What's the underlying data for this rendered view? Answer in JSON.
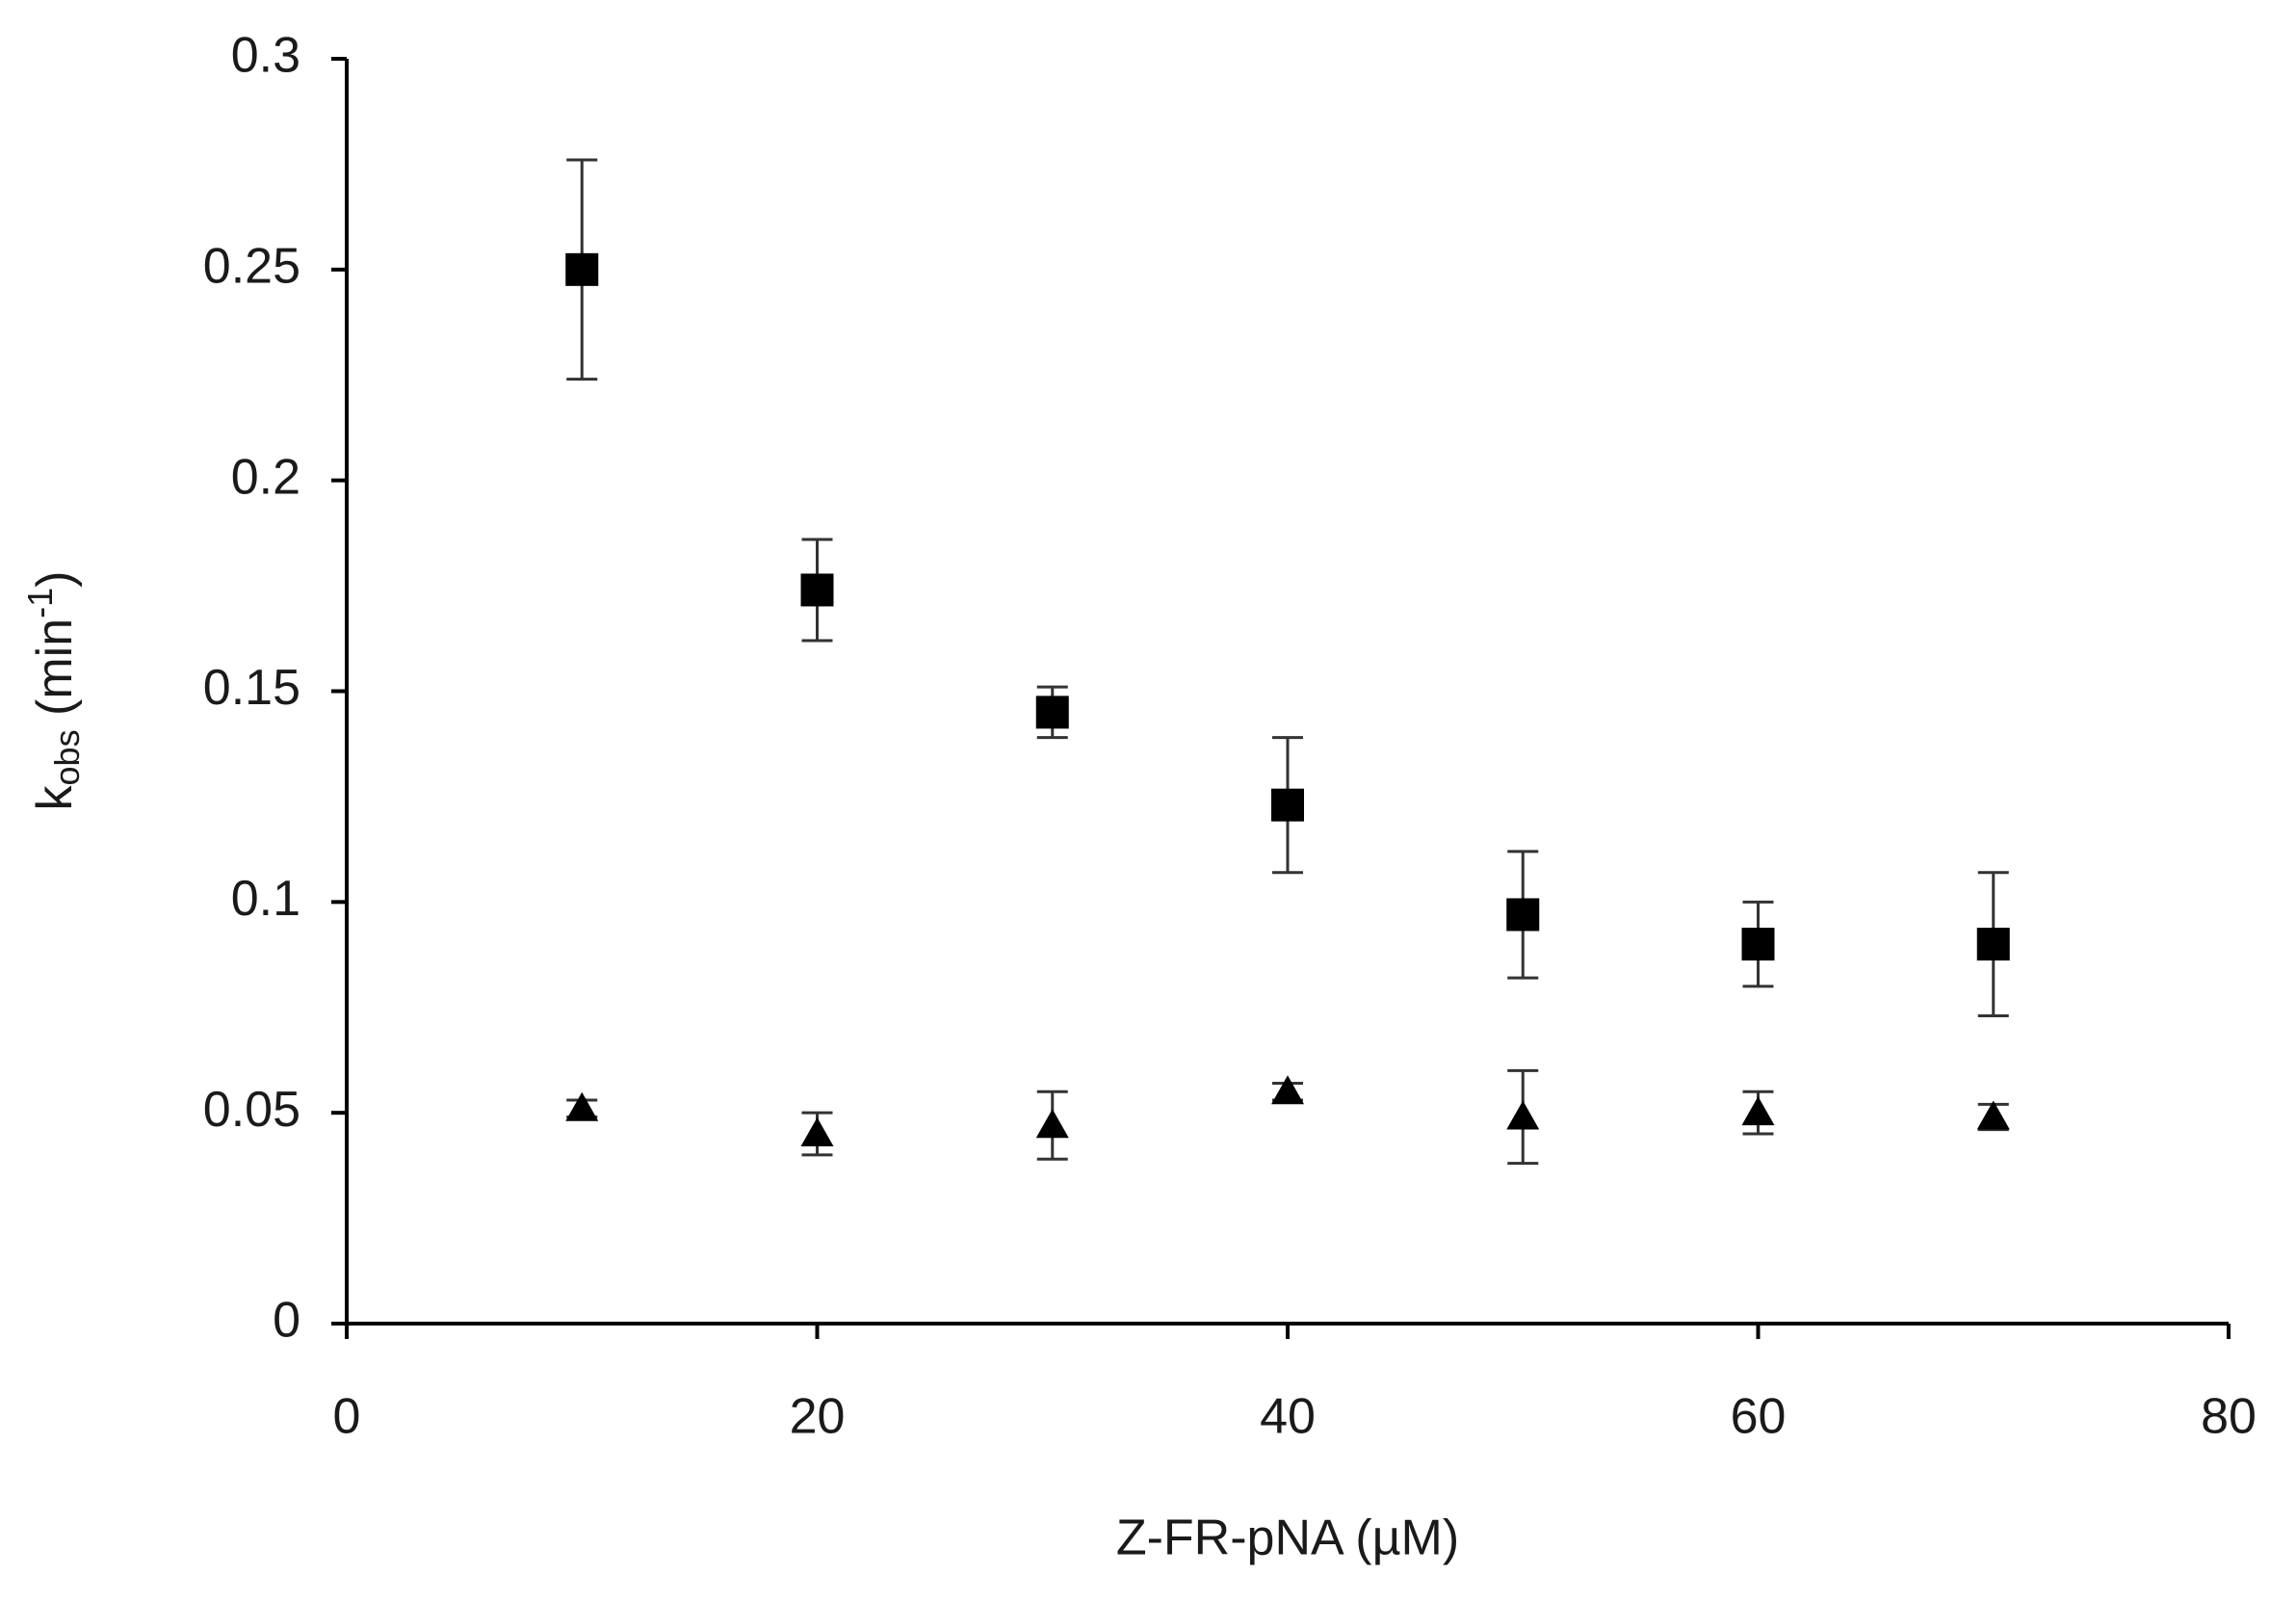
{
  "chart_data": {
    "type": "scatter",
    "xlabel": "Z-FR-pNA (µM)",
    "ylabel": [
      "k",
      "obs",
      " (min",
      "-1",
      ")"
    ],
    "x": [
      10,
      20,
      30,
      40,
      50,
      60,
      70
    ],
    "series": [
      {
        "color": "#000000",
        "marker": "square",
        "values": [
          0.25,
          0.174,
          0.145,
          0.123,
          0.097,
          0.09,
          0.09
        ],
        "errors": [
          0.026,
          0.012,
          0.006,
          0.016,
          0.015,
          0.01,
          0.017
        ]
      },
      {
        "color": "#000000",
        "marker": "triangle",
        "values": [
          0.051,
          0.045,
          0.047,
          0.055,
          0.049,
          0.05,
          0.049
        ],
        "errors": [
          0.002,
          0.005,
          0.008,
          0.002,
          0.011,
          0.005,
          0.003
        ]
      }
    ],
    "xlim": [
      0,
      80
    ],
    "xticks": [
      0,
      20,
      40,
      60,
      80
    ],
    "ylim": [
      0,
      0.3
    ],
    "yticks": [
      0,
      0.05,
      0.1,
      0.15,
      0.2,
      0.25,
      0.3
    ],
    "grid": false
  }
}
